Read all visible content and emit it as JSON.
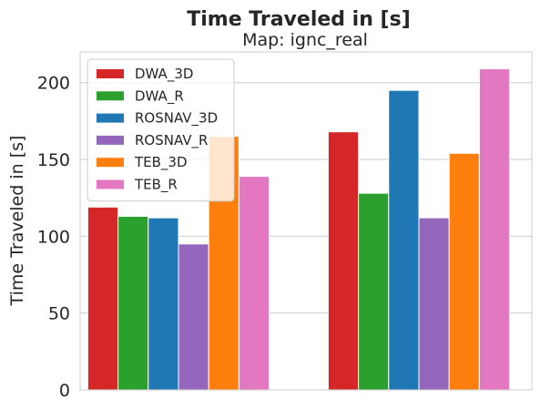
{
  "chart_data": {
    "type": "bar",
    "title": "Time Traveled in [s]",
    "subtitle": "Map: ignc_real",
    "xlabel": "",
    "ylabel": "Time Traveled in [s]",
    "ylim": [
      0,
      220
    ],
    "yticks": [
      0,
      50,
      100,
      150,
      200
    ],
    "grid": true,
    "legend_position": "upper-left",
    "categories": [
      "",
      ""
    ],
    "series": [
      {
        "name": "DWA_3D",
        "color": "#d62728",
        "values": [
          119,
          168
        ]
      },
      {
        "name": "DWA_R",
        "color": "#2ca02c",
        "values": [
          113,
          128
        ]
      },
      {
        "name": "ROSNAV_3D",
        "color": "#1f77b4",
        "values": [
          112,
          195
        ]
      },
      {
        "name": "ROSNAV_R",
        "color": "#9467bd",
        "values": [
          95,
          112
        ]
      },
      {
        "name": "TEB_3D",
        "color": "#ff7f0e",
        "values": [
          165,
          154
        ]
      },
      {
        "name": "TEB_R",
        "color": "#e377c2",
        "values": [
          139,
          209
        ]
      }
    ]
  }
}
